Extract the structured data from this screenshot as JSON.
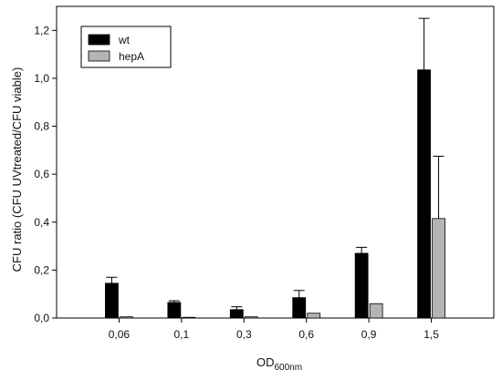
{
  "chart_data": {
    "type": "bar",
    "categories": [
      "0,06",
      "0,1",
      "0,3",
      "0,6",
      "0,9",
      "1,5"
    ],
    "series": [
      {
        "name": "wt",
        "color": "#000000",
        "values": [
          0.145,
          0.065,
          0.035,
          0.085,
          0.27,
          1.035
        ],
        "errors": [
          0.025,
          0.007,
          0.012,
          0.03,
          0.025,
          0.215
        ]
      },
      {
        "name": "hepA",
        "color": "#b4b4b4",
        "values": [
          0.005,
          0.003,
          0.005,
          0.02,
          0.06,
          0.415
        ],
        "errors": [
          0.0,
          0.0,
          0.0,
          0.0,
          0.0,
          0.26
        ]
      }
    ],
    "ylabel": "CFU ratio (CFU UVtreated/CFU viable)",
    "xlabel_main": "OD",
    "xlabel_sub": "600nm",
    "ylim": [
      0,
      1.3
    ],
    "yticks": [
      0.0,
      0.2,
      0.4,
      0.6,
      0.8,
      1.0,
      1.2
    ],
    "ytick_labels": [
      "0,0",
      "0,2",
      "0,4",
      "0,6",
      "0,8",
      "1,0",
      "1,2"
    ],
    "legend_position": "top-left",
    "grid": false
  }
}
